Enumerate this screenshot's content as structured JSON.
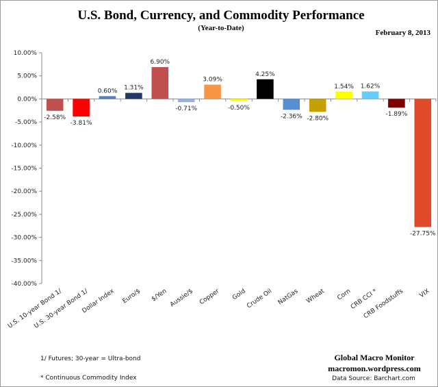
{
  "chart_data": {
    "type": "bar",
    "title": "U.S. Bond, Currency, and Commodity Performance",
    "subtitle": "(Year-to-Date)",
    "date": "February 8, 2013",
    "xlabel": "",
    "ylabel": "",
    "ylim": [
      -40,
      10
    ],
    "yticks": [
      "10.00%",
      "5.00%",
      "0.00%",
      "-5.00%",
      "-10.00%",
      "-15.00%",
      "-20.00%",
      "-25.00%",
      "-30.00%",
      "-35.00%",
      "-40.00%"
    ],
    "grid": false,
    "categories": [
      "U.S. 10-year Bond 1/",
      "U.S. 30-year Bond 1/",
      "Dollar Index",
      "Euro/$",
      "$/Yen",
      "Aussie/$",
      "Copper",
      "Gold",
      "Crude Oil",
      "NatGas",
      "Wheat",
      "Corn",
      "CRB CCI *",
      "CRB Foodstuffs",
      "VIX"
    ],
    "values": [
      -2.58,
      -3.81,
      0.6,
      1.31,
      6.9,
      -0.71,
      3.09,
      -0.5,
      4.25,
      -2.36,
      -2.8,
      1.54,
      1.62,
      -1.89,
      -27.75
    ],
    "data_labels": [
      "-2.58%",
      "-3.81%",
      "0.60%",
      "1.31%",
      "6.90%",
      "-0.71%",
      "3.09%",
      "-0.50%",
      "4.25%",
      "-2.36%",
      "-2.80%",
      "1.54%",
      "1.62%",
      "-1.89%",
      "-27.75%"
    ],
    "colors": [
      "#c0504d",
      "#ff0000",
      "#4f81bd",
      "#1f3864",
      "#c0504d",
      "#95b3d7",
      "#f79646",
      "#ffff00",
      "#000000",
      "#558ed5",
      "#c4a000",
      "#ffff00",
      "#66ccff",
      "#800000",
      "#e04a2a"
    ]
  },
  "footnotes": {
    "note1": "1/  Futures; 30-year = Ultra-bond",
    "note2": "* Continuous Commodity  Index"
  },
  "credits": {
    "name": "Global Macro Monitor",
    "site": "macromon.wordpress.com",
    "source": "Data Source:  Barchart.com"
  }
}
